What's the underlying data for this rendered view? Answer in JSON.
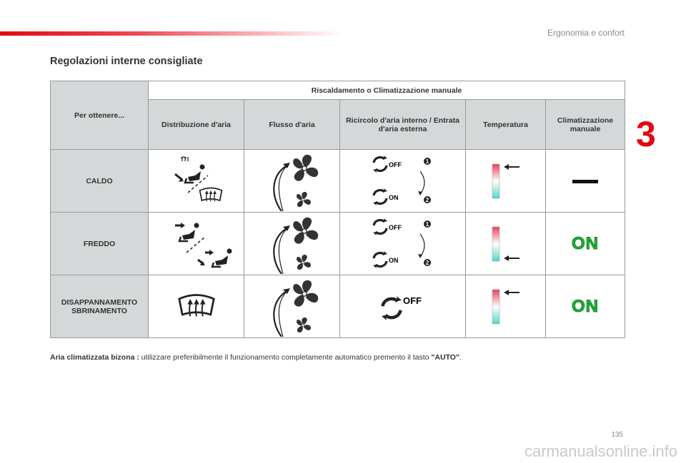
{
  "header": {
    "section": "Ergonomia e confort",
    "chapter_number": "3",
    "page_number": "135"
  },
  "title": "Regolazioni interne consigliate",
  "table": {
    "corner": "Per ottenere...",
    "group_header": "Riscaldamento o Climatizzazione manuale",
    "columns": [
      "Distribuzione d'aria",
      "Flusso d'aria",
      "Ricircolo d'aria interno / Entrata d'aria esterna",
      "Temperatura",
      "Climatizzazione manuale"
    ],
    "rows": [
      {
        "label": "CALDO",
        "recirc": {
          "top": "OFF",
          "bottom": "ON",
          "n1": "1",
          "n2": "2"
        },
        "ac": "—"
      },
      {
        "label": "FREDDO",
        "recirc": {
          "top": "OFF",
          "bottom": "ON",
          "n1": "1",
          "n2": "2"
        },
        "ac": "ON"
      },
      {
        "label": "DISAPPANNAMENTO SBRINAMENTO",
        "recirc": {
          "single": "OFF"
        },
        "ac": "ON"
      }
    ]
  },
  "note": {
    "label": "Aria climatizzata bizona :",
    "text": " utilizzare preferibilmente il funzionamento completamente automatico premento il tasto ",
    "key": "\"AUTO\"",
    "end": "."
  },
  "footer": "carmanualsonline.info",
  "colors": {
    "accent_red": "#e30613",
    "on_green": "#1fb83a",
    "temp_top": "#e8405a",
    "temp_bottom": "#4cd8c8"
  }
}
